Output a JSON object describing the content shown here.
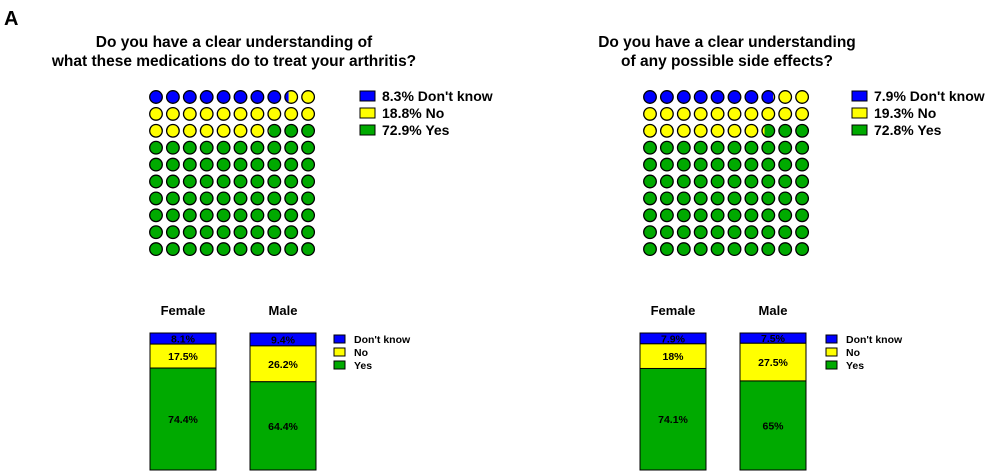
{
  "panel_label": "A",
  "colors": {
    "dont_know": "#0000ff",
    "no": "#ffff00",
    "yes": "#00aa00",
    "outline": "#000000"
  },
  "categories": [
    "Don't know",
    "No",
    "Yes"
  ],
  "chart_data": [
    {
      "type": "waffle",
      "title_lines": [
        "Do you have a clear understanding of",
        "what these medications do to treat your arthritis?"
      ],
      "legend": [
        "8.3%  Don't know",
        "18.8%  No",
        "72.9%  Yes"
      ],
      "series": [
        {
          "name": "Don't know",
          "value": 8.3
        },
        {
          "name": "No",
          "value": 18.8
        },
        {
          "name": "Yes",
          "value": 72.9
        }
      ]
    },
    {
      "type": "waffle",
      "title_lines": [
        "Do you have a clear understanding",
        "of any possible side effects?"
      ],
      "legend": [
        "7.9% Don't know",
        "19.3%  No",
        "72.8% Yes"
      ],
      "series": [
        {
          "name": "Don't know",
          "value": 7.9
        },
        {
          "name": "No",
          "value": 19.3
        },
        {
          "name": "Yes",
          "value": 72.8
        }
      ]
    },
    {
      "type": "stacked-bar",
      "categories": [
        "Female",
        "Male"
      ],
      "legend": [
        "Don't know",
        "No",
        "Yes"
      ],
      "series": [
        {
          "name": "Don't know",
          "values": [
            8.1,
            9.4
          ],
          "labels": [
            "8.1%",
            "9.4%"
          ]
        },
        {
          "name": "No",
          "values": [
            17.5,
            26.2
          ],
          "labels": [
            "17.5%",
            "26.2%"
          ]
        },
        {
          "name": "Yes",
          "values": [
            74.4,
            64.4
          ],
          "labels": [
            "74.4%",
            "64.4%"
          ]
        }
      ]
    },
    {
      "type": "stacked-bar",
      "categories": [
        "Female",
        "Male"
      ],
      "legend": [
        "Don't know",
        "No",
        "Yes"
      ],
      "series": [
        {
          "name": "Don't know",
          "values": [
            7.9,
            7.5
          ],
          "labels": [
            "7.9%",
            "7.5%"
          ]
        },
        {
          "name": "No",
          "values": [
            18,
            27.5
          ],
          "labels": [
            "18%",
            "27.5%"
          ]
        },
        {
          "name": "Yes",
          "values": [
            74.1,
            65
          ],
          "labels": [
            "74.1%",
            "65%"
          ]
        }
      ]
    }
  ]
}
